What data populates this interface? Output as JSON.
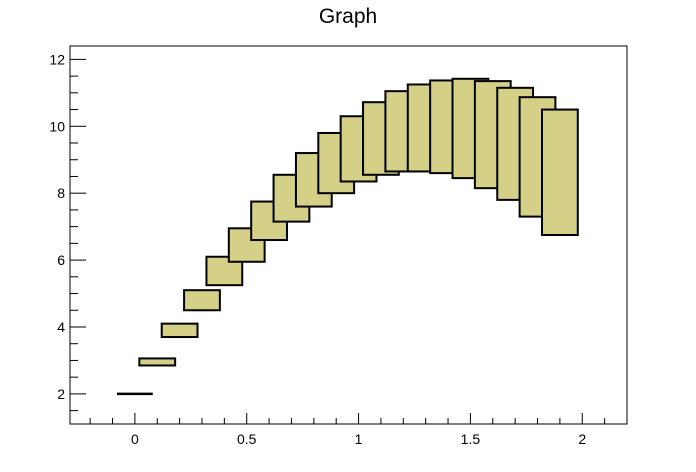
{
  "chart_data": {
    "type": "bar",
    "title": "Graph",
    "xlabel": "",
    "ylabel": "",
    "xlim": [
      -0.29,
      2.2
    ],
    "ylim": [
      1.1,
      12.4
    ],
    "x_ticks": [
      0,
      0.5,
      1,
      1.5,
      2
    ],
    "x_tick_labels": [
      "0",
      "0.5",
      "1",
      "1.5",
      "2"
    ],
    "y_ticks": [
      2,
      4,
      6,
      8,
      10,
      12
    ],
    "y_tick_labels": [
      "2",
      "4",
      "6",
      "8",
      "10",
      "12"
    ],
    "box_fill_color": "#d4d087",
    "box_edge_color": "#000000",
    "boxes": [
      {
        "x": 0.0,
        "half_width": 0.08,
        "y_low": 2.0,
        "y_high": 2.0
      },
      {
        "x": 0.1,
        "half_width": 0.08,
        "y_low": 2.85,
        "y_high": 3.06
      },
      {
        "x": 0.2,
        "half_width": 0.08,
        "y_low": 3.7,
        "y_high": 4.1
      },
      {
        "x": 0.3,
        "half_width": 0.08,
        "y_low": 4.5,
        "y_high": 5.1
      },
      {
        "x": 0.4,
        "half_width": 0.08,
        "y_low": 5.25,
        "y_high": 6.1
      },
      {
        "x": 0.5,
        "half_width": 0.08,
        "y_low": 5.95,
        "y_high": 6.95
      },
      {
        "x": 0.6,
        "half_width": 0.08,
        "y_low": 6.6,
        "y_high": 7.75
      },
      {
        "x": 0.7,
        "half_width": 0.08,
        "y_low": 7.15,
        "y_high": 8.55
      },
      {
        "x": 0.8,
        "half_width": 0.08,
        "y_low": 7.6,
        "y_high": 9.2
      },
      {
        "x": 0.9,
        "half_width": 0.08,
        "y_low": 8.0,
        "y_high": 9.8
      },
      {
        "x": 1.0,
        "half_width": 0.08,
        "y_low": 8.35,
        "y_high": 10.3
      },
      {
        "x": 1.1,
        "half_width": 0.08,
        "y_low": 8.55,
        "y_high": 10.72
      },
      {
        "x": 1.2,
        "half_width": 0.08,
        "y_low": 8.65,
        "y_high": 11.05
      },
      {
        "x": 1.3,
        "half_width": 0.08,
        "y_low": 8.65,
        "y_high": 11.25
      },
      {
        "x": 1.4,
        "half_width": 0.08,
        "y_low": 8.6,
        "y_high": 11.37
      },
      {
        "x": 1.5,
        "half_width": 0.08,
        "y_low": 8.45,
        "y_high": 11.42
      },
      {
        "x": 1.6,
        "half_width": 0.08,
        "y_low": 8.15,
        "y_high": 11.35
      },
      {
        "x": 1.7,
        "half_width": 0.08,
        "y_low": 7.8,
        "y_high": 11.15
      },
      {
        "x": 1.8,
        "half_width": 0.08,
        "y_low": 7.3,
        "y_high": 10.87
      },
      {
        "x": 1.9,
        "half_width": 0.08,
        "y_low": 6.75,
        "y_high": 10.5
      }
    ]
  }
}
